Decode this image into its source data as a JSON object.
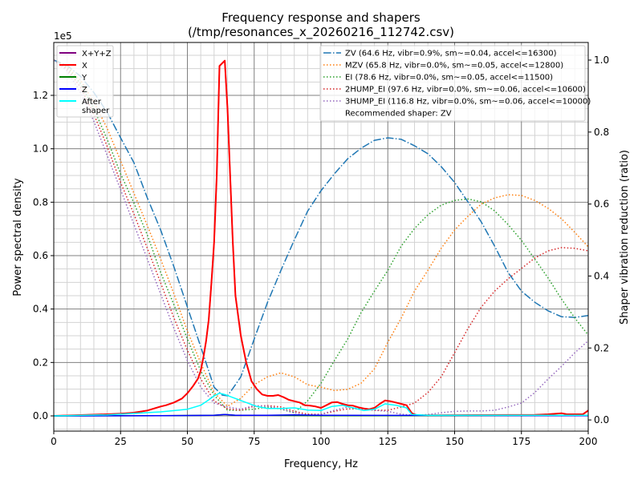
{
  "chart_data": {
    "type": "line",
    "title": "Frequency response and shapers",
    "subtitle": "(/tmp/resonances_x_20260216_112742.csv)",
    "xlabel": "Frequency, Hz",
    "ylabel": "Power spectral density",
    "y2label": "Shaper vibration reduction (ratio)",
    "y_offset_text": "1e5",
    "xlim": [
      0,
      200
    ],
    "ylim": [
      -0.057,
      1.398
    ],
    "y2lim": [
      -0.031,
      1.049
    ],
    "grid": true,
    "xticks": [
      "0",
      "25",
      "50",
      "75",
      "100",
      "125",
      "150",
      "175",
      "200"
    ],
    "yticks": [
      "0.0",
      "0.2",
      "0.4",
      "0.6",
      "0.8",
      "1.0",
      "1.2"
    ],
    "y2ticks": [
      "0.0",
      "0.2",
      "0.4",
      "0.6",
      "0.8",
      "1.0"
    ],
    "psd_legend_placement": "top-left",
    "shaper_legend_placement": "top-right",
    "psd_series": [
      {
        "name": "X+Y+Z",
        "color": "#800080",
        "x": [
          0,
          10,
          20,
          25,
          30,
          35,
          40,
          42,
          45,
          48,
          50,
          52,
          54,
          55,
          56,
          57,
          58,
          59,
          60,
          61,
          62,
          63,
          64,
          65,
          66,
          67,
          68,
          70,
          72,
          74,
          76,
          78,
          80,
          82,
          84,
          86,
          88,
          90,
          92,
          94,
          96,
          98,
          100,
          102,
          104,
          106,
          108,
          110,
          112,
          114,
          116,
          118,
          120,
          122,
          124,
          126,
          128,
          130,
          132,
          134,
          136,
          140,
          160,
          180,
          185,
          190,
          192,
          195,
          198,
          200
        ],
        "y": [
          0,
          0.003,
          0.006,
          0.008,
          0.012,
          0.02,
          0.035,
          0.04,
          0.05,
          0.065,
          0.085,
          0.11,
          0.14,
          0.17,
          0.22,
          0.28,
          0.36,
          0.5,
          0.65,
          0.9,
          1.31,
          1.32,
          1.33,
          1.15,
          0.9,
          0.65,
          0.45,
          0.3,
          0.2,
          0.13,
          0.1,
          0.08,
          0.075,
          0.075,
          0.078,
          0.07,
          0.06,
          0.055,
          0.05,
          0.04,
          0.038,
          0.035,
          0.03,
          0.04,
          0.05,
          0.052,
          0.045,
          0.04,
          0.038,
          0.032,
          0.028,
          0.025,
          0.03,
          0.045,
          0.058,
          0.055,
          0.05,
          0.045,
          0.04,
          0.01,
          0.002,
          0.002,
          0.003,
          0.004,
          0.006,
          0.01,
          0.006,
          0.006,
          0.006,
          0.02
        ]
      },
      {
        "name": "X",
        "color": "#ff0000",
        "x": [
          0,
          10,
          20,
          25,
          30,
          35,
          40,
          42,
          45,
          48,
          50,
          52,
          54,
          55,
          56,
          57,
          58,
          59,
          60,
          61,
          62,
          63,
          64,
          65,
          66,
          67,
          68,
          70,
          72,
          74,
          76,
          78,
          80,
          82,
          84,
          86,
          88,
          90,
          92,
          94,
          96,
          98,
          100,
          102,
          104,
          106,
          108,
          110,
          112,
          114,
          116,
          118,
          120,
          122,
          124,
          126,
          128,
          130,
          132,
          134,
          136,
          140,
          160,
          180,
          185,
          190,
          192,
          195,
          198,
          200
        ],
        "y": [
          0,
          0.003,
          0.006,
          0.008,
          0.012,
          0.02,
          0.035,
          0.04,
          0.05,
          0.065,
          0.085,
          0.11,
          0.14,
          0.17,
          0.22,
          0.28,
          0.36,
          0.5,
          0.65,
          0.9,
          1.31,
          1.32,
          1.33,
          1.15,
          0.9,
          0.65,
          0.45,
          0.3,
          0.2,
          0.13,
          0.1,
          0.08,
          0.075,
          0.075,
          0.078,
          0.07,
          0.06,
          0.055,
          0.05,
          0.04,
          0.038,
          0.035,
          0.03,
          0.04,
          0.05,
          0.052,
          0.045,
          0.04,
          0.038,
          0.032,
          0.028,
          0.025,
          0.03,
          0.045,
          0.058,
          0.055,
          0.05,
          0.045,
          0.04,
          0.01,
          0.002,
          0.002,
          0.003,
          0.004,
          0.006,
          0.01,
          0.006,
          0.006,
          0.006,
          0.02
        ]
      },
      {
        "name": "Y",
        "color": "#008000",
        "x": [
          0,
          40,
          60,
          64,
          68,
          80,
          100,
          200
        ],
        "y": [
          0,
          0.001,
          0.002,
          0.005,
          0.002,
          0.002,
          0.001,
          0.001
        ]
      },
      {
        "name": "Z",
        "color": "#0000ff",
        "x": [
          0,
          40,
          60,
          64,
          68,
          80,
          90,
          100,
          200
        ],
        "y": [
          0,
          0.001,
          0.002,
          0.005,
          0.002,
          0.002,
          0.004,
          0.002,
          0.001
        ]
      },
      {
        "name": "After\nshaper",
        "color": "#00ffff",
        "x": [
          0,
          20,
          40,
          50,
          55,
          58,
          60,
          62,
          64,
          68,
          72,
          76,
          80,
          85,
          90,
          95,
          100,
          104,
          108,
          112,
          116,
          120,
          124,
          128,
          132,
          134,
          140,
          200
        ],
        "y": [
          0,
          0.004,
          0.015,
          0.025,
          0.04,
          0.06,
          0.075,
          0.085,
          0.08,
          0.065,
          0.05,
          0.035,
          0.028,
          0.028,
          0.03,
          0.022,
          0.02,
          0.035,
          0.04,
          0.03,
          0.02,
          0.025,
          0.045,
          0.04,
          0.03,
          0.005,
          0.002,
          0.002
        ]
      }
    ],
    "shaper_series": [
      {
        "name": "ZV (64.6 Hz, vibr=0.9%, sm~=0.04, accel<=16300)",
        "color": "#1f77b4",
        "style": "dashdot",
        "x": [
          0,
          5,
          10,
          15,
          20,
          25,
          30,
          35,
          40,
          45,
          50,
          55,
          60,
          63,
          65,
          68,
          70,
          75,
          80,
          85,
          90,
          95,
          100,
          105,
          110,
          115,
          120,
          125,
          130,
          135,
          140,
          145,
          150,
          155,
          160,
          165,
          170,
          175,
          180,
          185,
          190,
          195,
          200
        ],
        "y": [
          1.0,
          0.985,
          0.955,
          0.91,
          0.855,
          0.784,
          0.715,
          0.617,
          0.528,
          0.425,
          0.314,
          0.203,
          0.091,
          0.069,
          0.067,
          0.098,
          0.12,
          0.225,
          0.327,
          0.416,
          0.5,
          0.58,
          0.637,
          0.684,
          0.726,
          0.755,
          0.777,
          0.784,
          0.78,
          0.762,
          0.74,
          0.704,
          0.66,
          0.606,
          0.55,
          0.483,
          0.41,
          0.358,
          0.327,
          0.303,
          0.287,
          0.285,
          0.29
        ]
      },
      {
        "name": "MZV (65.8 Hz, vibr=0.0%, sm~=0.05, accel<=12800)",
        "color": "#ff7f0e",
        "style": "dotted",
        "x": [
          0,
          5,
          10,
          15,
          20,
          25,
          30,
          35,
          40,
          45,
          50,
          55,
          60,
          65,
          70,
          75,
          80,
          85,
          90,
          95,
          100,
          105,
          110,
          115,
          120,
          125,
          130,
          135,
          140,
          145,
          150,
          155,
          160,
          165,
          170,
          175,
          180,
          185,
          190,
          195,
          200
        ],
        "y": [
          1,
          0.982,
          0.944,
          0.884,
          0.81,
          0.72,
          0.63,
          0.54,
          0.447,
          0.35,
          0.247,
          0.158,
          0.076,
          0.038,
          0.06,
          0.098,
          0.12,
          0.131,
          0.12,
          0.098,
          0.091,
          0.082,
          0.085,
          0.102,
          0.142,
          0.216,
          0.283,
          0.358,
          0.416,
          0.477,
          0.528,
          0.566,
          0.6,
          0.617,
          0.626,
          0.624,
          0.61,
          0.588,
          0.559,
          0.521,
          0.481
        ]
      },
      {
        "name": "EI (78.6 Hz, vibr=0.0%, sm~=0.05, accel<=11500)",
        "color": "#2ca02c",
        "style": "dotted",
        "x": [
          0,
          5,
          10,
          15,
          20,
          25,
          30,
          35,
          40,
          45,
          50,
          55,
          60,
          65,
          70,
          75,
          80,
          85,
          90,
          95,
          100,
          105,
          110,
          115,
          120,
          125,
          130,
          135,
          140,
          145,
          150,
          155,
          160,
          165,
          170,
          175,
          180,
          185,
          190,
          195,
          200
        ],
        "y": [
          1,
          0.98,
          0.935,
          0.865,
          0.78,
          0.684,
          0.603,
          0.514,
          0.41,
          0.32,
          0.225,
          0.136,
          0.069,
          0.027,
          0.027,
          0.03,
          0.036,
          0.03,
          0.02,
          0.053,
          0.102,
          0.165,
          0.225,
          0.298,
          0.358,
          0.416,
          0.483,
          0.532,
          0.57,
          0.597,
          0.61,
          0.614,
          0.606,
          0.581,
          0.543,
          0.499,
          0.447,
          0.394,
          0.336,
          0.283,
          0.236
        ]
      },
      {
        "name": "2HUMP_EI (97.6 Hz, vibr=0.0%, sm~=0.06, accel<=10600)",
        "color": "#d62728",
        "style": "dotted",
        "x": [
          0,
          5,
          10,
          15,
          20,
          25,
          30,
          35,
          40,
          45,
          50,
          55,
          60,
          65,
          70,
          75,
          80,
          85,
          90,
          95,
          100,
          105,
          110,
          115,
          120,
          125,
          130,
          135,
          140,
          145,
          150,
          155,
          160,
          165,
          170,
          175,
          180,
          185,
          190,
          195,
          200
        ],
        "y": [
          1,
          0.975,
          0.925,
          0.85,
          0.76,
          0.66,
          0.572,
          0.477,
          0.381,
          0.283,
          0.194,
          0.114,
          0.053,
          0.031,
          0.027,
          0.038,
          0.04,
          0.036,
          0.024,
          0.016,
          0.016,
          0.024,
          0.031,
          0.031,
          0.027,
          0.027,
          0.036,
          0.047,
          0.076,
          0.12,
          0.187,
          0.254,
          0.314,
          0.358,
          0.392,
          0.421,
          0.45,
          0.47,
          0.479,
          0.477,
          0.47
        ]
      },
      {
        "name": "3HUMP_EI (116.8 Hz, vibr=0.0%, sm~=0.06, accel<=10000)",
        "color": "#9467bd",
        "style": "dotted",
        "x": [
          0,
          5,
          10,
          15,
          20,
          25,
          30,
          35,
          40,
          45,
          50,
          55,
          60,
          65,
          70,
          75,
          80,
          85,
          90,
          95,
          100,
          105,
          110,
          115,
          120,
          125,
          130,
          135,
          140,
          145,
          150,
          155,
          160,
          165,
          170,
          175,
          180,
          185,
          190,
          195,
          200
        ],
        "y": [
          1,
          0.97,
          0.91,
          0.83,
          0.735,
          0.64,
          0.543,
          0.447,
          0.35,
          0.254,
          0.165,
          0.091,
          0.047,
          0.036,
          0.03,
          0.04,
          0.038,
          0.031,
          0.02,
          0.013,
          0.016,
          0.027,
          0.036,
          0.031,
          0.027,
          0.024,
          0.016,
          0.013,
          0.015,
          0.02,
          0.024,
          0.025,
          0.025,
          0.027,
          0.036,
          0.047,
          0.076,
          0.114,
          0.149,
          0.187,
          0.22
        ]
      }
    ],
    "recommended_text": "Recommended shaper: ZV"
  }
}
